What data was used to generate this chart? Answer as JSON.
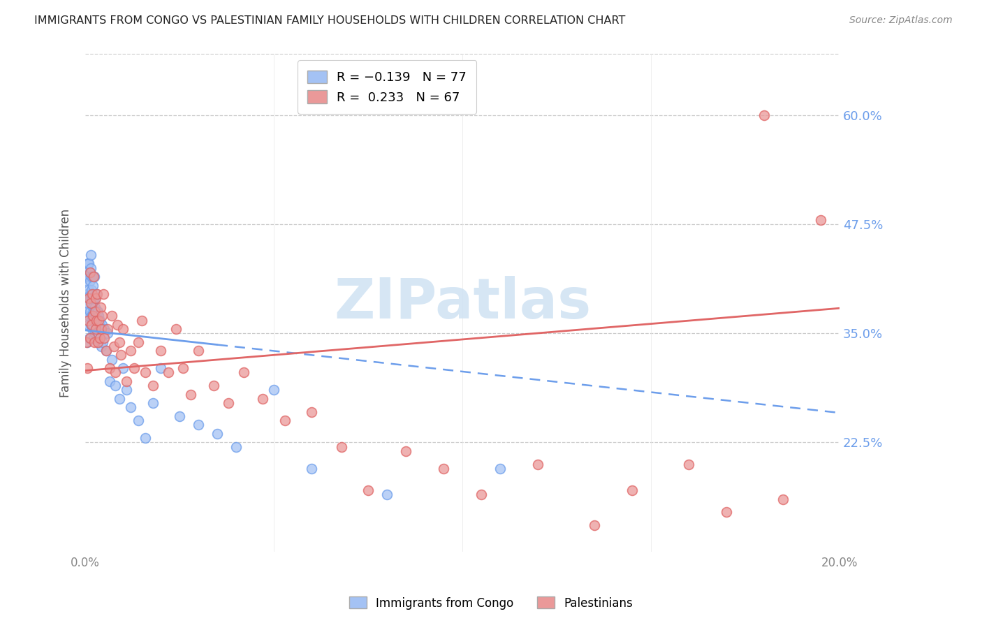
{
  "title": "IMMIGRANTS FROM CONGO VS PALESTINIAN FAMILY HOUSEHOLDS WITH CHILDREN CORRELATION CHART",
  "source": "Source: ZipAtlas.com",
  "ylabel": "Family Households with Children",
  "ytick_labels": [
    "60.0%",
    "47.5%",
    "35.0%",
    "22.5%"
  ],
  "ytick_values": [
    0.6,
    0.475,
    0.35,
    0.225
  ],
  "congo_color": "#a4c2f4",
  "palest_color": "#ea9999",
  "trend_blue": "#6d9eeb",
  "trend_pink": "#e06666",
  "watermark_color": "#cfe2f3",
  "xmin": 0.0,
  "xmax": 0.2,
  "ymin": 0.1,
  "ymax": 0.67,
  "congo_R": -0.139,
  "congo_N": 77,
  "palest_R": 0.233,
  "palest_N": 67,
  "congo_x": [
    0.0002,
    0.0003,
    0.0004,
    0.0005,
    0.0005,
    0.0006,
    0.0007,
    0.0008,
    0.0008,
    0.0009,
    0.001,
    0.001,
    0.001,
    0.0011,
    0.0012,
    0.0012,
    0.0013,
    0.0013,
    0.0014,
    0.0014,
    0.0015,
    0.0015,
    0.0016,
    0.0016,
    0.0017,
    0.0017,
    0.0018,
    0.0018,
    0.0019,
    0.002,
    0.002,
    0.0021,
    0.0021,
    0.0022,
    0.0023,
    0.0023,
    0.0024,
    0.0025,
    0.0025,
    0.0026,
    0.0027,
    0.0028,
    0.0029,
    0.003,
    0.0031,
    0.0032,
    0.0033,
    0.0034,
    0.0035,
    0.0036,
    0.0038,
    0.004,
    0.0042,
    0.0044,
    0.0046,
    0.005,
    0.0055,
    0.006,
    0.0065,
    0.007,
    0.008,
    0.009,
    0.01,
    0.011,
    0.012,
    0.014,
    0.016,
    0.018,
    0.02,
    0.025,
    0.03,
    0.035,
    0.04,
    0.05,
    0.06,
    0.08,
    0.11
  ],
  "congo_y": [
    0.385,
    0.42,
    0.41,
    0.375,
    0.34,
    0.395,
    0.43,
    0.415,
    0.36,
    0.39,
    0.43,
    0.4,
    0.37,
    0.345,
    0.42,
    0.39,
    0.41,
    0.375,
    0.44,
    0.395,
    0.425,
    0.36,
    0.4,
    0.37,
    0.415,
    0.385,
    0.355,
    0.39,
    0.37,
    0.415,
    0.38,
    0.405,
    0.36,
    0.39,
    0.375,
    0.345,
    0.415,
    0.38,
    0.35,
    0.39,
    0.37,
    0.355,
    0.375,
    0.395,
    0.365,
    0.345,
    0.375,
    0.35,
    0.37,
    0.34,
    0.365,
    0.355,
    0.335,
    0.36,
    0.34,
    0.355,
    0.33,
    0.35,
    0.295,
    0.32,
    0.29,
    0.275,
    0.31,
    0.285,
    0.265,
    0.25,
    0.23,
    0.27,
    0.31,
    0.255,
    0.245,
    0.235,
    0.22,
    0.285,
    0.195,
    0.165,
    0.195
  ],
  "palest_x": [
    0.0003,
    0.0005,
    0.0008,
    0.001,
    0.0012,
    0.0013,
    0.0015,
    0.0016,
    0.0018,
    0.002,
    0.0022,
    0.0024,
    0.0025,
    0.0027,
    0.0028,
    0.003,
    0.0032,
    0.0034,
    0.0036,
    0.0038,
    0.004,
    0.0042,
    0.0045,
    0.0048,
    0.005,
    0.0055,
    0.006,
    0.0065,
    0.007,
    0.0075,
    0.008,
    0.0085,
    0.009,
    0.0095,
    0.01,
    0.011,
    0.012,
    0.013,
    0.014,
    0.015,
    0.016,
    0.018,
    0.02,
    0.022,
    0.024,
    0.026,
    0.028,
    0.03,
    0.034,
    0.038,
    0.042,
    0.047,
    0.053,
    0.06,
    0.068,
    0.075,
    0.085,
    0.095,
    0.105,
    0.12,
    0.135,
    0.145,
    0.16,
    0.17,
    0.18,
    0.185,
    0.195
  ],
  "palest_y": [
    0.34,
    0.31,
    0.365,
    0.39,
    0.345,
    0.42,
    0.385,
    0.36,
    0.395,
    0.37,
    0.415,
    0.34,
    0.375,
    0.355,
    0.39,
    0.365,
    0.395,
    0.34,
    0.365,
    0.345,
    0.38,
    0.355,
    0.37,
    0.395,
    0.345,
    0.33,
    0.355,
    0.31,
    0.37,
    0.335,
    0.305,
    0.36,
    0.34,
    0.325,
    0.355,
    0.295,
    0.33,
    0.31,
    0.34,
    0.365,
    0.305,
    0.29,
    0.33,
    0.305,
    0.355,
    0.31,
    0.28,
    0.33,
    0.29,
    0.27,
    0.305,
    0.275,
    0.25,
    0.26,
    0.22,
    0.17,
    0.215,
    0.195,
    0.165,
    0.2,
    0.13,
    0.17,
    0.2,
    0.145,
    0.6,
    0.16,
    0.48
  ]
}
